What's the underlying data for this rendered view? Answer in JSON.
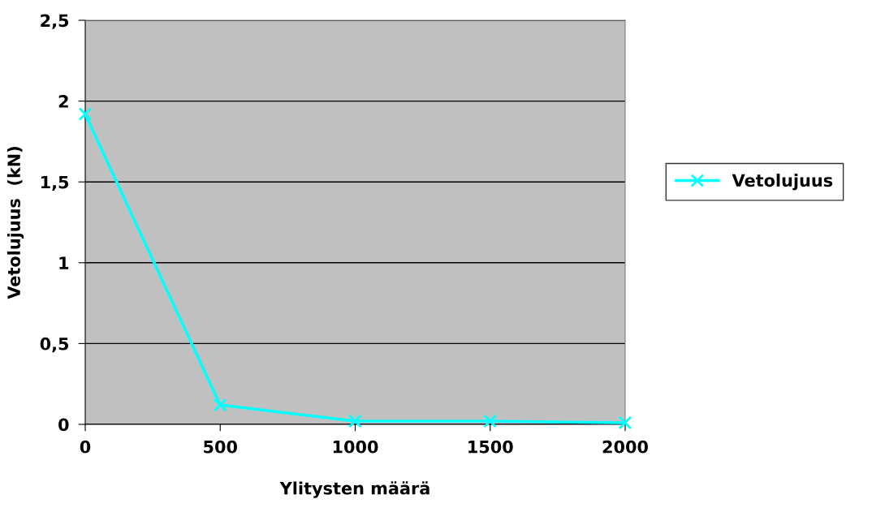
{
  "chart_data": {
    "type": "line",
    "xlabel": "Ylitysten määrä",
    "ylabel": "Vetolujuus  (kN)",
    "x": [
      0,
      500,
      1000,
      1500,
      2000
    ],
    "series": [
      {
        "name": "Vetolujuus",
        "color": "#00ffff",
        "values": [
          1.92,
          0.12,
          0.02,
          0.02,
          0.01
        ]
      }
    ],
    "xlim": [
      0,
      2000
    ],
    "xticks": [
      0,
      500,
      1000,
      1500,
      2000
    ],
    "ylim": [
      0,
      2.5
    ],
    "yticks": [
      {
        "value": 0,
        "label": "0"
      },
      {
        "value": 0.5,
        "label": "0,5"
      },
      {
        "value": 1,
        "label": "1"
      },
      {
        "value": 1.5,
        "label": "1,5"
      },
      {
        "value": 2,
        "label": "2"
      },
      {
        "value": 2.5,
        "label": "2,5"
      }
    ],
    "grid": "y",
    "legend": "right",
    "marker": "cross",
    "line_style": "solid"
  }
}
